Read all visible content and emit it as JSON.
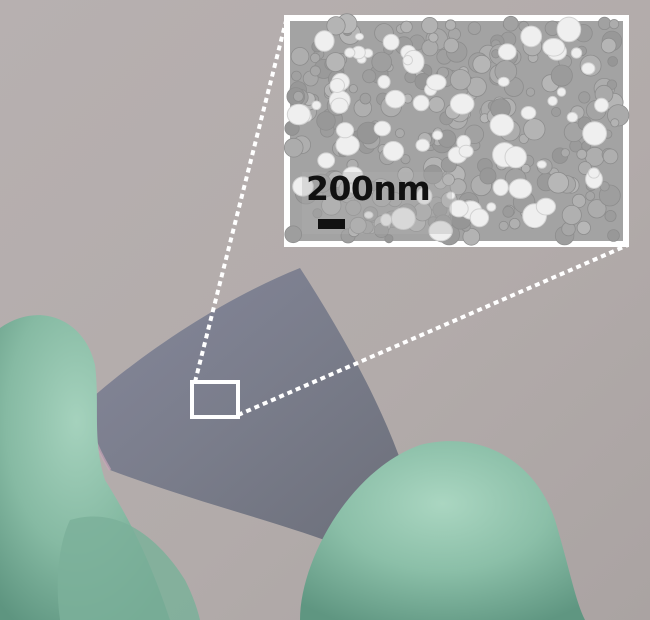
{
  "inset": {
    "scale_label": "200nm"
  },
  "colors": {
    "background": "#b4acab",
    "glove": "#85b8a2",
    "film": "#7d7f8a",
    "sem_base": "#a6a6a6",
    "sem_grain_light": "#f0f0f0",
    "callout": "#ffffff",
    "scale_text": "#111111"
  }
}
